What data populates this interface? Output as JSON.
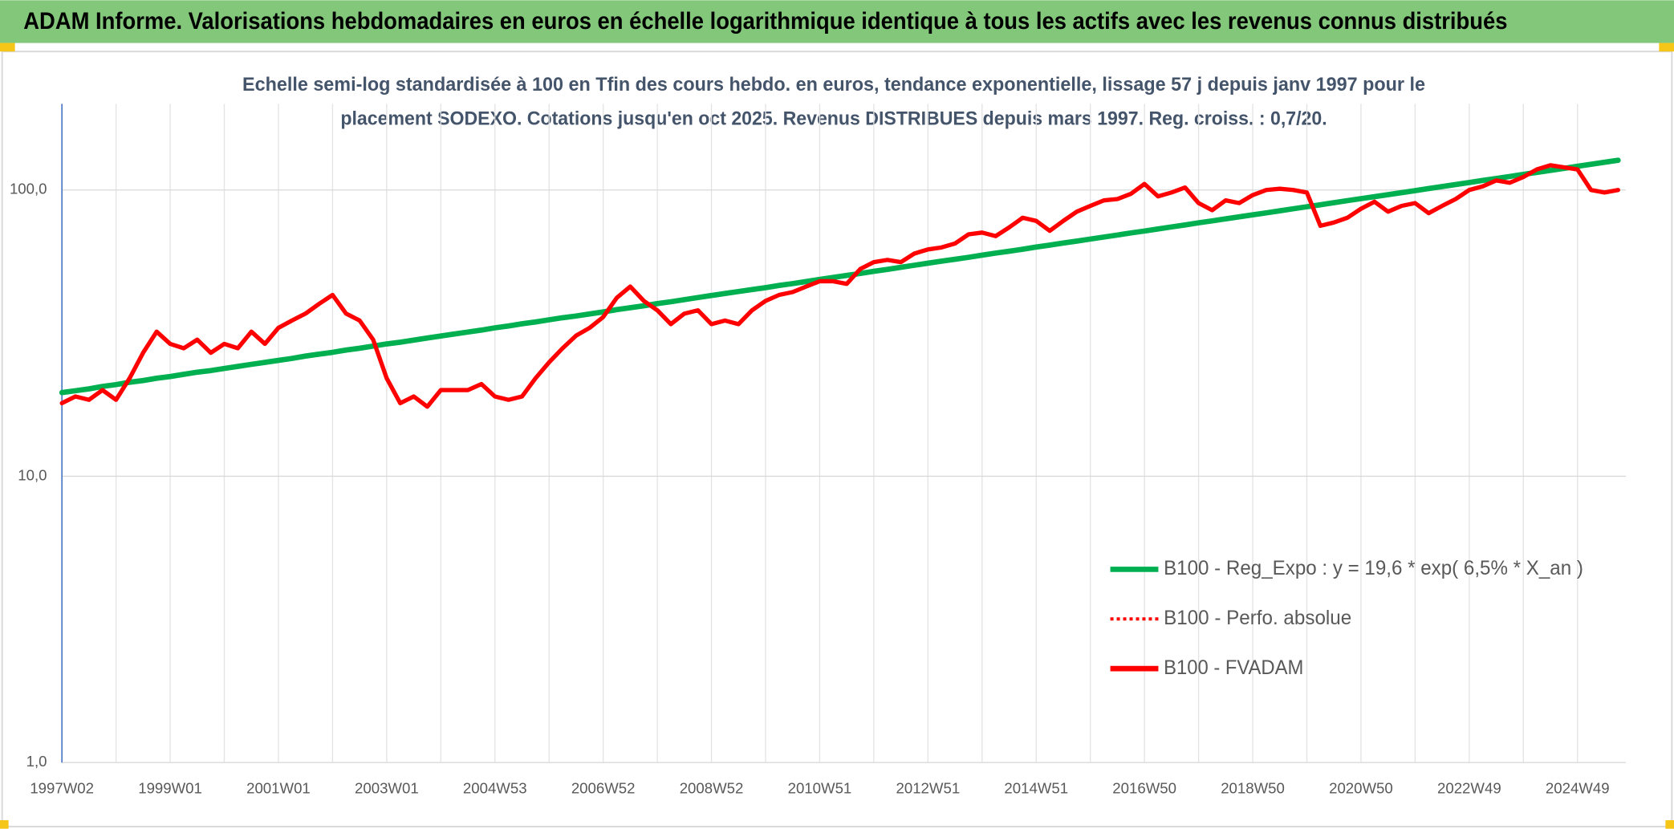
{
  "chart_data": {
    "type": "line",
    "title": "ADAM Informe. Valorisations hebdomadaires en euros en échelle logarithmique identique à tous les actifs avec les revenus connus distribués",
    "subtitle": [
      "Echelle semi-log standardisée à 100 en Tfin des cours hebdo. en euros, tendance exponentielle, lissage 57 j depuis janv 1997 pour le",
      "placement SODEXO. Cotations jusqu'en oct 2025. Revenus DISTRIBUES depuis mars 1997. Reg. croiss. : 0,7/20."
    ],
    "categories": [
      "1997W02",
      null,
      null,
      null,
      null,
      null,
      null,
      null,
      "1999W01",
      null,
      null,
      null,
      null,
      null,
      null,
      null,
      "2001W01",
      null,
      null,
      null,
      null,
      null,
      null,
      null,
      "2003W01",
      null,
      null,
      null,
      null,
      null,
      null,
      null,
      "2004W53",
      null,
      null,
      null,
      null,
      null,
      null,
      null,
      "2006W52",
      null,
      null,
      null,
      null,
      null,
      null,
      null,
      "2008W52",
      null,
      null,
      null,
      null,
      null,
      null,
      null,
      "2010W51",
      null,
      null,
      null,
      null,
      null,
      null,
      null,
      "2012W51",
      null,
      null,
      null,
      null,
      null,
      null,
      null,
      "2014W51",
      null,
      null,
      null,
      null,
      null,
      null,
      null,
      "2016W50",
      null,
      null,
      null,
      null,
      null,
      null,
      null,
      "2018W50",
      null,
      null,
      null,
      null,
      null,
      null,
      null,
      "2020W50",
      null,
      null,
      null,
      null,
      null,
      null,
      null,
      "2022W49",
      null,
      null,
      null,
      null,
      null,
      null,
      null,
      "2024W49",
      null,
      null,
      null
    ],
    "series": [
      {
        "name": "B100 - Reg_Expo : y = 19,6 * exp( 6,5% *  X_an )",
        "color": "#00b050",
        "style": "solid",
        "values": [
          19.6,
          19.9,
          20.2,
          20.6,
          20.9,
          21.3,
          21.6,
          22.0,
          22.3,
          22.7,
          23.1,
          23.4,
          23.8,
          24.2,
          24.6,
          25.0,
          25.4,
          25.8,
          26.3,
          26.7,
          27.1,
          27.6,
          28.0,
          28.5,
          29.0,
          29.4,
          29.9,
          30.4,
          30.9,
          31.4,
          31.9,
          32.4,
          33.0,
          33.5,
          34.1,
          34.6,
          35.2,
          35.8,
          36.3,
          36.9,
          37.5,
          38.2,
          38.8,
          39.4,
          40.1,
          40.7,
          41.4,
          42.1,
          42.8,
          43.5,
          44.2,
          44.9,
          45.6,
          46.4,
          47.1,
          47.9,
          48.7,
          49.5,
          50.3,
          51.1,
          52.0,
          52.8,
          53.7,
          54.6,
          55.5,
          56.4,
          57.3,
          58.2,
          59.2,
          60.2,
          61.1,
          62.1,
          63.2,
          64.2,
          65.3,
          66.3,
          67.4,
          68.5,
          69.6,
          70.8,
          71.9,
          73.1,
          74.3,
          75.5,
          76.8,
          78.0,
          79.3,
          80.6,
          81.9,
          83.2,
          84.6,
          86.0,
          87.4,
          88.8,
          90.3,
          91.8,
          93.3,
          94.8,
          96.3,
          97.9,
          99.5,
          101.2,
          102.8,
          104.5,
          106.2,
          108.0,
          109.7,
          111.5,
          113.4,
          115.2,
          117.1,
          119.0,
          121.0,
          123.0,
          125.0,
          127.0
        ]
      },
      {
        "name": "B100 - Perfo. absolue",
        "color": "#ff0000",
        "style": "dotted",
        "values": [
          18,
          19,
          18.5,
          20,
          18.5,
          22,
          27,
          32,
          29,
          28,
          30,
          27,
          29,
          28,
          32,
          29,
          33,
          35,
          37,
          40,
          43,
          37,
          35,
          30,
          22,
          18,
          19,
          17.5,
          20,
          20,
          20,
          21,
          19,
          18.5,
          19,
          22,
          25,
          28,
          31,
          33,
          36,
          42,
          46,
          41,
          38,
          34,
          37,
          38,
          34,
          35,
          34,
          38,
          41,
          43,
          44,
          46,
          48,
          48,
          47,
          53,
          56,
          57,
          56,
          60,
          62,
          63,
          65,
          70,
          71,
          69,
          74,
          80,
          78,
          72,
          78,
          84,
          88,
          92,
          93,
          97,
          105,
          95,
          98,
          102,
          90,
          85,
          92,
          90,
          96,
          100,
          101,
          100,
          98,
          75,
          77,
          80,
          86,
          91,
          84,
          88,
          90,
          83,
          88,
          93,
          100,
          103,
          108,
          106,
          111,
          118,
          122,
          120,
          118,
          100,
          98,
          100
        ]
      },
      {
        "name": "B100 - FVADAM",
        "color": "#ff0000",
        "style": "solid",
        "values": [
          18,
          19,
          18.5,
          20,
          18.5,
          22,
          27,
          32,
          29,
          28,
          30,
          27,
          29,
          28,
          32,
          29,
          33,
          35,
          37,
          40,
          43,
          37,
          35,
          30,
          22,
          18,
          19,
          17.5,
          20,
          20,
          20,
          21,
          19,
          18.5,
          19,
          22,
          25,
          28,
          31,
          33,
          36,
          42,
          46,
          41,
          38,
          34,
          37,
          38,
          34,
          35,
          34,
          38,
          41,
          43,
          44,
          46,
          48,
          48,
          47,
          53,
          56,
          57,
          56,
          60,
          62,
          63,
          65,
          70,
          71,
          69,
          74,
          80,
          78,
          72,
          78,
          84,
          88,
          92,
          93,
          97,
          105,
          95,
          98,
          102,
          90,
          85,
          92,
          90,
          96,
          100,
          101,
          100,
          98,
          75,
          77,
          80,
          86,
          91,
          84,
          88,
          90,
          83,
          88,
          93,
          100,
          103,
          108,
          106,
          111,
          118,
          122,
          120,
          118,
          100,
          98,
          100
        ]
      }
    ],
    "ylim": [
      1,
      200
    ],
    "yticks": [
      {
        "value": 1,
        "label": "1,0"
      },
      {
        "value": 10,
        "label": "10,0"
      },
      {
        "value": 100,
        "label": "100,0"
      }
    ],
    "log_y": true,
    "grid": true,
    "legend": "lower right"
  }
}
